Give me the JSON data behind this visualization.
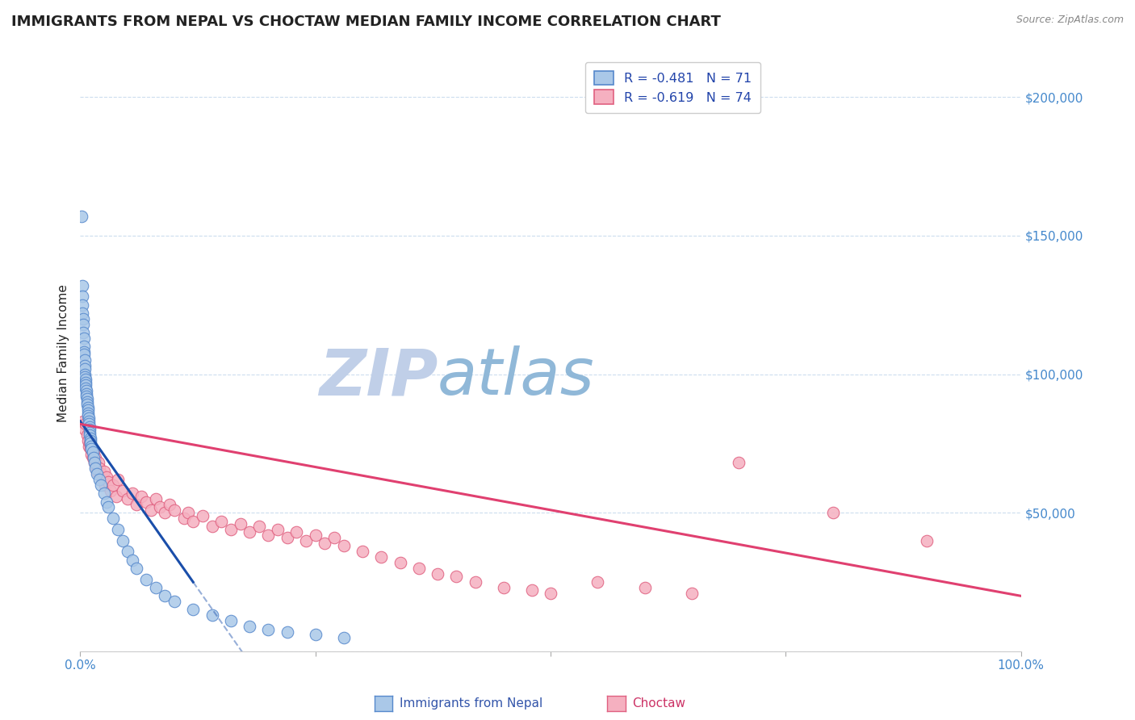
{
  "title": "IMMIGRANTS FROM NEPAL VS CHOCTAW MEDIAN FAMILY INCOME CORRELATION CHART",
  "source": "Source: ZipAtlas.com",
  "ylabel": "Median Family Income",
  "y_ticks": [
    0,
    50000,
    100000,
    150000,
    200000
  ],
  "y_tick_labels": [
    "",
    "$50,000",
    "$100,000",
    "$150,000",
    "$200,000"
  ],
  "xmin": 0.0,
  "xmax": 100.0,
  "ymin": 0,
  "ymax": 215000,
  "nepal_R": -0.481,
  "nepal_N": 71,
  "choctaw_R": -0.619,
  "choctaw_N": 74,
  "nepal_color": "#aac8e8",
  "nepal_edge_color": "#5588cc",
  "nepal_line_color": "#1a4eaa",
  "choctaw_color": "#f5b0c0",
  "choctaw_edge_color": "#e06080",
  "choctaw_line_color": "#e04070",
  "watermark_zip_color": "#c0cfe8",
  "watermark_atlas_color": "#90b8d8",
  "background_color": "#ffffff",
  "grid_color": "#ccddee",
  "title_color": "#222222",
  "axis_tick_color": "#4488cc",
  "legend_color": "#2244aa",
  "nepal_scatter_x": [
    0.15,
    0.18,
    0.2,
    0.22,
    0.25,
    0.28,
    0.3,
    0.32,
    0.35,
    0.38,
    0.4,
    0.42,
    0.45,
    0.48,
    0.5,
    0.5,
    0.52,
    0.55,
    0.58,
    0.6,
    0.6,
    0.62,
    0.65,
    0.68,
    0.7,
    0.72,
    0.75,
    0.78,
    0.8,
    0.82,
    0.85,
    0.88,
    0.9,
    0.92,
    0.95,
    0.98,
    1.0,
    1.0,
    1.05,
    1.1,
    1.1,
    1.15,
    1.2,
    1.3,
    1.4,
    1.5,
    1.6,
    1.8,
    2.0,
    2.2,
    2.5,
    2.8,
    3.0,
    3.5,
    4.0,
    4.5,
    5.0,
    5.5,
    6.0,
    7.0,
    8.0,
    9.0,
    10.0,
    12.0,
    14.0,
    16.0,
    18.0,
    20.0,
    22.0,
    25.0,
    28.0
  ],
  "nepal_scatter_y": [
    157000,
    132000,
    128000,
    125000,
    122000,
    120000,
    118000,
    115000,
    113000,
    110000,
    108000,
    107000,
    105000,
    103000,
    102000,
    100000,
    99000,
    98000,
    97000,
    96000,
    95000,
    94000,
    93000,
    92000,
    91000,
    90000,
    89000,
    88000,
    87000,
    86000,
    85000,
    84000,
    83000,
    82000,
    81000,
    80000,
    79000,
    78000,
    77000,
    76000,
    75000,
    74000,
    73000,
    72000,
    70000,
    68000,
    66000,
    64000,
    62000,
    60000,
    57000,
    54000,
    52000,
    48000,
    44000,
    40000,
    36000,
    33000,
    30000,
    26000,
    23000,
    20000,
    18000,
    15000,
    13000,
    11000,
    9000,
    8000,
    7000,
    6000,
    5000
  ],
  "choctaw_scatter_x": [
    0.3,
    0.5,
    0.6,
    0.7,
    0.8,
    0.9,
    1.0,
    1.1,
    1.2,
    1.3,
    1.4,
    1.5,
    1.6,
    1.7,
    1.8,
    1.9,
    2.0,
    2.2,
    2.4,
    2.5,
    2.6,
    2.8,
    3.0,
    3.2,
    3.5,
    3.8,
    4.0,
    4.5,
    5.0,
    5.5,
    6.0,
    6.5,
    7.0,
    7.5,
    8.0,
    8.5,
    9.0,
    9.5,
    10.0,
    11.0,
    11.5,
    12.0,
    13.0,
    14.0,
    15.0,
    16.0,
    17.0,
    18.0,
    19.0,
    20.0,
    21.0,
    22.0,
    23.0,
    24.0,
    25.0,
    26.0,
    27.0,
    28.0,
    30.0,
    32.0,
    34.0,
    36.0,
    38.0,
    40.0,
    42.0,
    45.0,
    48.0,
    50.0,
    55.0,
    60.0,
    65.0,
    70.0,
    80.0,
    90.0
  ],
  "choctaw_scatter_y": [
    83000,
    80000,
    82000,
    78000,
    76000,
    74000,
    75000,
    73000,
    71000,
    70000,
    72000,
    68000,
    70000,
    67000,
    65000,
    68000,
    66000,
    64000,
    62000,
    65000,
    60000,
    63000,
    61000,
    58000,
    60000,
    56000,
    62000,
    58000,
    55000,
    57000,
    53000,
    56000,
    54000,
    51000,
    55000,
    52000,
    50000,
    53000,
    51000,
    48000,
    50000,
    47000,
    49000,
    45000,
    47000,
    44000,
    46000,
    43000,
    45000,
    42000,
    44000,
    41000,
    43000,
    40000,
    42000,
    39000,
    41000,
    38000,
    36000,
    34000,
    32000,
    30000,
    28000,
    27000,
    25000,
    23000,
    22000,
    21000,
    25000,
    23000,
    21000,
    68000,
    50000,
    40000
  ],
  "nepal_line_x0": 0.0,
  "nepal_line_x1": 12.0,
  "nepal_line_y0": 83000,
  "nepal_line_y1": 25000,
  "nepal_dash_x0": 12.0,
  "nepal_dash_x1": 28.0,
  "choctaw_line_x0": 0.0,
  "choctaw_line_x1": 100.0,
  "choctaw_line_y0": 82000,
  "choctaw_line_y1": 20000
}
